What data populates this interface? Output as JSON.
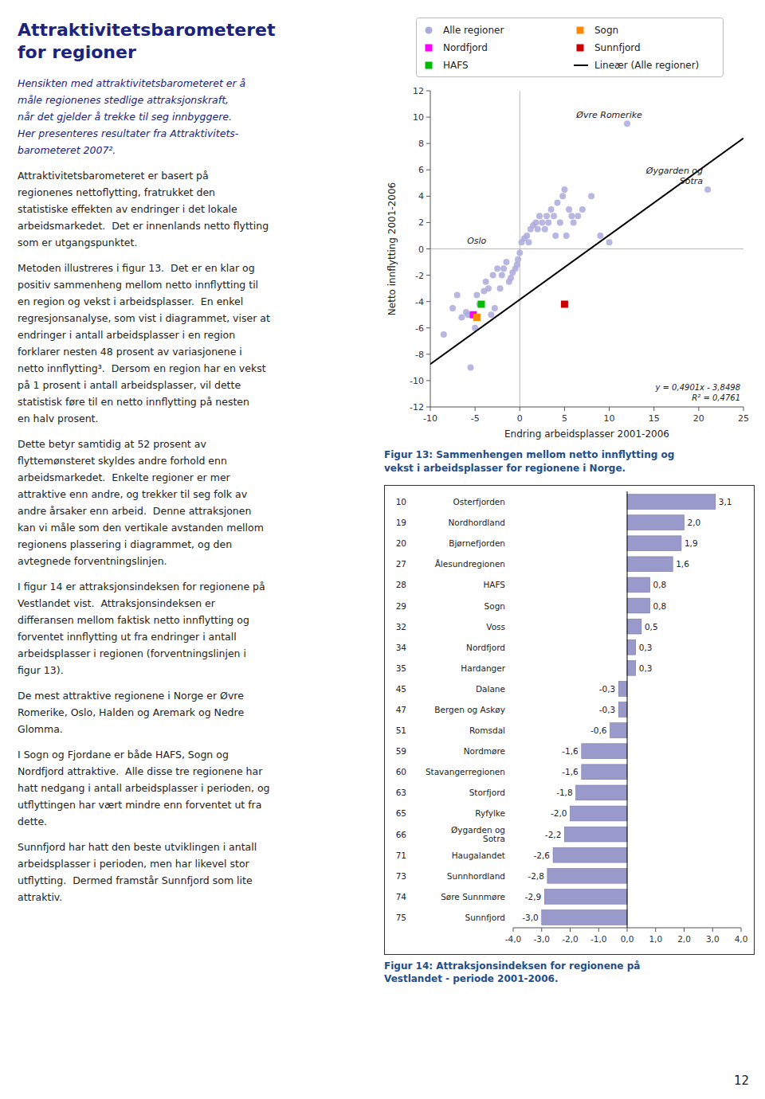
{
  "title": [
    "Attraktivitetsbarometeret",
    "for regioner"
  ],
  "intro": [
    "Hensikten med attraktivitetsbarometeret er å",
    "måle regionenes stedlige attraksjonskraft,",
    "når det gjelder å trekke til seg innbyggere.",
    "Her presenteres resultater fra Attraktivitets-",
    "barometeret 2007²."
  ],
  "paragraphs": [
    [
      "Attraktivitetsbarometeret er basert på",
      "regionenes nettoflytting, fratrukket den",
      "statistiske effekten av endringer i det lokale",
      "arbeidsmarkedet.  Det er innenlands netto flytting",
      "som er utgangspunktet."
    ],
    [
      "Metoden illustreres i figur 13.  Det er en klar og",
      "positiv sammenheng mellom netto innflytting til",
      "en region og vekst i arbeidsplasser.  En enkel",
      "regresjonsanalyse, som vist i diagrammet, viser at",
      "endringer i antall arbeidsplasser i en region",
      "forklarer nesten 48 prosent av variasjonene i",
      "netto innflytting³.  Dersom en region har en vekst",
      "på 1 prosent i antall arbeidsplasser, vil dette",
      "statistisk føre til en netto innflytting på nesten",
      "en halv prosent."
    ],
    [
      "Dette betyr samtidig at 52 prosent av",
      "flyttemønsteret skyldes andre forhold enn",
      "arbeidsmarkedet.  Enkelte regioner er mer",
      "attraktive enn andre, og trekker til seg folk av",
      "andre årsaker enn arbeid.  Denne attraksjonen",
      "kan vi måle som den vertikale avstanden mellom",
      "regionens plassering i diagrammet, og den",
      "avtegnede forventningslinjen."
    ],
    [
      "I figur 14 er attraksjonsindeksen for regionene på",
      "Vestlandet vist.  Attraksjonsindeksen er",
      "differansen mellom faktisk netto innflytting og",
      "forventet innflytting ut fra endringer i antall",
      "arbeidsplasser i regionen (forventningslinjen i",
      "figur 13)."
    ],
    [
      "De mest attraktive regionene i Norge er Øvre",
      "Romerike, Oslo, Halden og Aremark og Nedre",
      "Glomma."
    ],
    [
      "I Sogn og Fjordane er både HAFS, Sogn og",
      "Nordfjord attraktive.  Alle disse tre regionene har",
      "hatt nedgang i antall arbeidsplasser i perioden, og",
      "utflyttingen har vært mindre enn forventet ut fra",
      "dette."
    ],
    [
      "Sunnfjord har hatt den beste utviklingen i antall",
      "arbeidsplasser i perioden, men har likevel stor",
      "utflytting.  Dermed framstår Sunnfjord som lite",
      "attraktiv."
    ]
  ],
  "page_number": "12",
  "chart_data": [
    {
      "type": "scatter",
      "title": "Figur 13: Sammenhengen mellom netto innflytting og\nvekst i arbeidsplasser for regionene i Norge.",
      "x_label": "Endring arbeidsplasser 2001-2006",
      "y_label": "Netto innflytting 2001-2006",
      "xlim": [
        -10,
        25
      ],
      "ylim": [
        -12,
        12
      ],
      "xticks": [
        -10,
        -5,
        0,
        5,
        10,
        15,
        20,
        25
      ],
      "yticks": [
        -12,
        -10,
        -8,
        -6,
        -4,
        -2,
        0,
        2,
        4,
        6,
        8,
        10,
        12
      ],
      "grid": false,
      "legend": "top",
      "series": [
        {
          "name": "Alle regioner",
          "type": "scatter",
          "marker": "circle",
          "color": "#AAAADD",
          "x": [
            -8.5,
            -7.5,
            -7.0,
            -6.5,
            -6.0,
            -5.8,
            -5.5,
            -5.0,
            -4.8,
            -4.5,
            -4.0,
            -3.8,
            -3.5,
            -3.2,
            -3.0,
            -2.8,
            -2.5,
            -2.2,
            -2.0,
            -1.8,
            -1.5,
            -1.2,
            -1.0,
            -0.8,
            -0.5,
            -0.3,
            -0.2,
            0.0,
            0.2,
            0.5,
            0.8,
            1.0,
            1.2,
            1.5,
            1.8,
            2.0,
            2.2,
            2.5,
            2.8,
            3.0,
            3.2,
            3.5,
            3.8,
            4.0,
            4.2,
            4.5,
            4.8,
            5.0,
            5.2,
            5.5,
            5.8,
            6.0,
            6.5,
            7.0,
            8.0,
            9.0,
            10.0,
            12.0,
            21.0
          ],
          "values": [
            -6.5,
            -4.5,
            -3.5,
            -5.2,
            -4.8,
            -5.0,
            -9.0,
            -6.0,
            -3.5,
            -4.2,
            -3.2,
            -2.5,
            -3.0,
            -5.0,
            -2.0,
            -4.5,
            -1.5,
            -3.0,
            -2.0,
            -1.5,
            -1.0,
            -2.5,
            -2.2,
            -1.8,
            -1.5,
            -1.2,
            -0.8,
            -0.3,
            0.5,
            0.8,
            1.0,
            0.5,
            1.5,
            1.8,
            2.0,
            1.5,
            2.5,
            2.0,
            1.5,
            2.5,
            2.0,
            3.0,
            2.5,
            1.0,
            3.5,
            2.0,
            4.0,
            4.5,
            1.0,
            3.0,
            2.5,
            2.0,
            2.5,
            3.0,
            4.0,
            1.0,
            0.5,
            9.5,
            4.5
          ]
        },
        {
          "name": "Nordfjord",
          "type": "scatter",
          "marker": "square",
          "color": "#FF00FF",
          "x": [
            -5.2
          ],
          "values": [
            -5.0
          ]
        },
        {
          "name": "HAFS",
          "type": "scatter",
          "marker": "square",
          "color": "#00BB00",
          "x": [
            -4.3
          ],
          "values": [
            -4.2
          ]
        },
        {
          "name": "Sogn",
          "type": "scatter",
          "marker": "square",
          "color": "#FF8800",
          "x": [
            -4.8
          ],
          "values": [
            -5.2
          ]
        },
        {
          "name": "Sunnfjord",
          "type": "scatter",
          "marker": "square",
          "color": "#CC0000",
          "x": [
            5.0
          ],
          "values": [
            -4.2
          ]
        },
        {
          "name": "Lineær (Alle regioner)",
          "type": "line",
          "line_style": "solid",
          "color": "#000000",
          "x": [
            -10,
            25
          ],
          "values": [
            -8.7508,
            8.4027
          ]
        }
      ],
      "annotations": [
        {
          "text": "y = 0,4901x - 3,8498\nR² = 0,4761"
        },
        {
          "text": "Oslo",
          "x": -3.2,
          "y": 0.0
        },
        {
          "text": "Øvre Romerike",
          "x": 10.0,
          "y": 9.5
        },
        {
          "text": "Øygarden og\nSotra",
          "x": 21.0,
          "y": 4.5
        }
      ]
    },
    {
      "type": "bar",
      "title": "Figur 14: Attraksjonsindeksen for regionene på\nVestlandet - periode 2001-2006.",
      "orientation": "horizontal",
      "categories": [
        "Osterfjorden",
        "Nordhordland",
        "Bjørnefjorden",
        "Ålesundregionen",
        "HAFS",
        "Sogn",
        "Voss",
        "Nordfjord",
        "Hardanger",
        "Dalane",
        "Bergen og Askøy",
        "Romsdal",
        "Nordmøre",
        "Stavangerregionen",
        "Storfjord",
        "Ryfylke",
        "Øygarden og\nSotra",
        "Haugalandet",
        "Sunnhordland",
        "Søre Sunnmøre",
        "Sunnfjord"
      ],
      "ids": [
        "10",
        "19",
        "20",
        "27",
        "28",
        "29",
        "32",
        "34",
        "35",
        "45",
        "47",
        "51",
        "59",
        "60",
        "63",
        "65",
        "66",
        "71",
        "73",
        "74",
        "75"
      ],
      "values": [
        3.1,
        2.0,
        1.9,
        1.6,
        0.8,
        0.8,
        0.5,
        0.3,
        0.3,
        -0.3,
        -0.3,
        -0.6,
        -1.6,
        -1.6,
        -1.8,
        -2.0,
        -2.2,
        -2.6,
        -2.8,
        -2.9,
        -3.0
      ],
      "value_labels": [
        "3,1",
        "2,0",
        "1,9",
        "1,6",
        "0,8",
        "0,8",
        "0,5",
        "0,3",
        "0,3",
        "-0,3",
        "-0,3",
        "-0,6",
        "-1,6",
        "-1,6",
        "-1,8",
        "-2,0",
        "-2,2",
        "-2,6",
        "-2,8",
        "-2,9",
        "-3,0"
      ],
      "data_labels": true,
      "color": "#9999CC",
      "xlim": [
        -4.0,
        4.0
      ],
      "xticks": [
        {
          "value": -4.0,
          "label": "-4,0"
        },
        {
          "value": -3.0,
          "label": "-3,0"
        },
        {
          "value": -2.0,
          "label": "-2,0"
        },
        {
          "value": -1.0,
          "label": "-1,0"
        },
        {
          "value": 0.0,
          "label": "0,0"
        },
        {
          "value": 1.0,
          "label": "1,0"
        },
        {
          "value": 2.0,
          "label": "2,0"
        },
        {
          "value": 3.0,
          "label": "3,0"
        },
        {
          "value": 4.0,
          "label": "4,0"
        }
      ]
    }
  ]
}
